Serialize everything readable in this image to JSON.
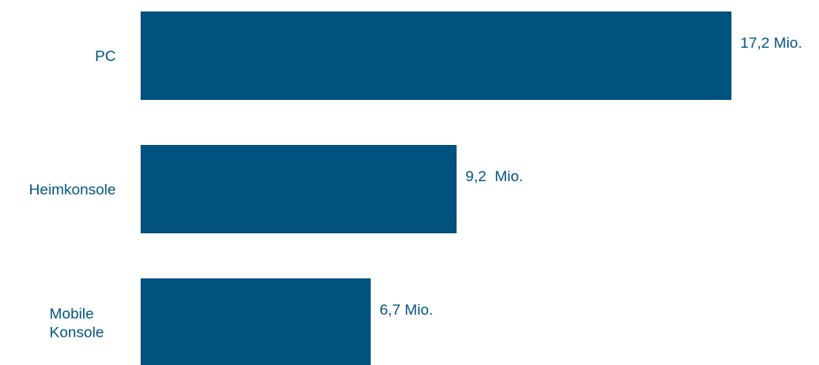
{
  "chart_data": {
    "type": "bar",
    "orientation": "horizontal",
    "categories": [
      "PC",
      "Heimkonsole",
      "Mobile Konsole"
    ],
    "category_lines": [
      [
        "PC"
      ],
      [
        "Heimkonsole"
      ],
      [
        "Mobile",
        "Konsole"
      ]
    ],
    "values": [
      17.2,
      9.2,
      6.7
    ],
    "value_labels": [
      "17,2 Mio.",
      "9,2  Mio.",
      "6,7 Mio."
    ],
    "xlim": [
      0,
      17.2
    ],
    "grid": false,
    "legend": "none",
    "bar_color": "#00527f",
    "text_color": "#00527f"
  }
}
